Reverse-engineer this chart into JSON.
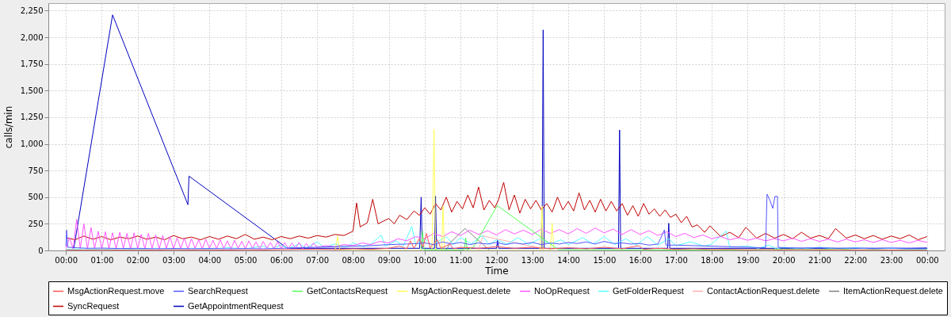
{
  "chart_data": {
    "type": "line",
    "xlabel": "Time",
    "ylabel": "calls/min",
    "xlim": [
      -0.49,
      24.49
    ],
    "ylim": [
      0,
      2320
    ],
    "xticks": [
      {
        "value": 0,
        "label": "00:00"
      },
      {
        "value": 1,
        "label": "01:00"
      },
      {
        "value": 2,
        "label": "02:00"
      },
      {
        "value": 3,
        "label": "03:00"
      },
      {
        "value": 4,
        "label": "04:00"
      },
      {
        "value": 5,
        "label": "05:00"
      },
      {
        "value": 6,
        "label": "06:00"
      },
      {
        "value": 7,
        "label": "07:00"
      },
      {
        "value": 8,
        "label": "08:00"
      },
      {
        "value": 9,
        "label": "09:00"
      },
      {
        "value": 10,
        "label": "10:00"
      },
      {
        "value": 11,
        "label": "11:00"
      },
      {
        "value": 12,
        "label": "12:00"
      },
      {
        "value": 13,
        "label": "13:00"
      },
      {
        "value": 14,
        "label": "14:00"
      },
      {
        "value": 15,
        "label": "15:00"
      },
      {
        "value": 16,
        "label": "16:00"
      },
      {
        "value": 17,
        "label": "17:00"
      },
      {
        "value": 18,
        "label": "18:00"
      },
      {
        "value": 19,
        "label": "19:00"
      },
      {
        "value": 20,
        "label": "20:00"
      },
      {
        "value": 21,
        "label": "21:00"
      },
      {
        "value": 22,
        "label": "22:00"
      },
      {
        "value": 23,
        "label": "23:00"
      },
      {
        "value": 24,
        "label": "00:00"
      }
    ],
    "yticks": [
      0,
      250,
      500,
      750,
      {
        "value": 1000,
        "label": "1,000"
      },
      {
        "value": 1250,
        "label": "1,250"
      },
      {
        "value": 1500,
        "label": "1,500"
      },
      {
        "value": 1750,
        "label": "1,750"
      },
      {
        "value": 2000,
        "label": "2,000"
      },
      {
        "value": 2250,
        "label": "2,250"
      }
    ],
    "grid": true,
    "legend": "bottom",
    "series": [
      {
        "name": "MsgActionRequest.move",
        "color": "#ff5555",
        "x": [
          0,
          0.5,
          1,
          1.5,
          2,
          2.5,
          3,
          3.5,
          4,
          4.5,
          5,
          5.5,
          6,
          6.5,
          7,
          7.5,
          8,
          8.5,
          9,
          9.3,
          9.5,
          9.6,
          9.7,
          9.85,
          9.95,
          10.05,
          10.15,
          10.35,
          10.45,
          10.7,
          10.8,
          11,
          11.5,
          12,
          12.5,
          13,
          13.5,
          14,
          14.5,
          15,
          15.5,
          15.96,
          16.1,
          16.5,
          17,
          17.5,
          18,
          18.5,
          19,
          19.5,
          20,
          20.5,
          21,
          21.5,
          22,
          22.5,
          23,
          23.5,
          24
        ],
        "values": [
          5,
          3,
          6,
          4,
          5,
          3,
          6,
          4,
          5,
          3,
          6,
          4,
          8,
          10,
          12,
          8,
          15,
          10,
          20,
          40,
          15,
          90,
          20,
          110,
          30,
          160,
          25,
          100,
          20,
          60,
          15,
          30,
          20,
          35,
          20,
          30,
          15,
          25,
          15,
          30,
          15,
          45,
          10,
          20,
          10,
          15,
          8,
          10,
          6,
          8,
          5,
          8,
          5,
          6,
          4,
          6,
          4,
          5,
          4
        ]
      },
      {
        "name": "SearchRequest",
        "color": "#5555ff",
        "x": [
          0,
          0.02,
          0.05,
          0.3,
          0.6,
          1,
          1.5,
          2,
          2.5,
          3,
          3.5,
          4,
          4.5,
          5,
          5.5,
          6,
          6.5,
          7,
          7.5,
          8,
          8.5,
          9,
          9.5,
          10,
          10.25,
          10.5,
          10.75,
          11,
          11.25,
          11.5,
          11.75,
          12,
          12.25,
          12.5,
          12.75,
          13,
          13.25,
          13.5,
          13.75,
          14,
          14.25,
          14.5,
          14.75,
          15,
          15.25,
          15.5,
          15.75,
          16,
          16.25,
          16.5,
          16.68,
          16.72,
          17,
          17.5,
          18,
          18.5,
          19,
          19.5,
          19.54,
          19.62,
          19.7,
          19.76,
          19.83,
          19.85,
          20,
          20.5,
          21,
          21.5,
          22,
          22.5,
          23,
          23.5,
          24
        ],
        "values": [
          40,
          190,
          30,
          25,
          20,
          22,
          18,
          20,
          15,
          18,
          15,
          18,
          15,
          17,
          15,
          20,
          25,
          30,
          35,
          40,
          45,
          55,
          60,
          70,
          55,
          80,
          60,
          75,
          55,
          70,
          60,
          75,
          55,
          70,
          60,
          75,
          55,
          70,
          60,
          75,
          65,
          80,
          60,
          85,
          65,
          70,
          60,
          65,
          50,
          60,
          193,
          50,
          50,
          45,
          40,
          35,
          30,
          25,
          528,
          470,
          394,
          507,
          507,
          30,
          25,
          22,
          25,
          20,
          22,
          20,
          22,
          20,
          25
        ]
      },
      {
        "name": "GetContactsRequest",
        "color": "#55ff55",
        "x": [
          9.9,
          9.94,
          9.98,
          11.1,
          11.14,
          11.18,
          11.36,
          12.02,
          13.72,
          16,
          19,
          20,
          21,
          21.5,
          22,
          24
        ],
        "values": [
          5,
          181,
          5,
          5,
          119,
          5,
          32,
          421,
          7,
          5,
          5,
          12,
          8,
          15,
          5,
          3
        ]
      },
      {
        "name": "MsgActionRequest.delete",
        "color": "#ffff55",
        "x": [
          7.5,
          7.57,
          7.64,
          10.2,
          10.26,
          10.3,
          10.47,
          10.51,
          10.55,
          13.22,
          13.27,
          13.3,
          13.5,
          13.55,
          13.6
        ],
        "values": [
          0,
          131,
          0,
          0,
          1135,
          0,
          0,
          416,
          0,
          0,
          416,
          0,
          0,
          255,
          0
        ]
      },
      {
        "name": "NoOpRequest",
        "color": "#ff55ff",
        "x": [
          0,
          0.1,
          0.2,
          0.3,
          0.4,
          0.5,
          0.6,
          0.7,
          0.8,
          0.9,
          1,
          1.1,
          1.2,
          1.3,
          1.4,
          1.5,
          1.6,
          1.7,
          1.8,
          1.9,
          2,
          2.1,
          2.2,
          2.3,
          2.4,
          2.5,
          2.6,
          2.7,
          2.8,
          2.9,
          3,
          3.1,
          3.2,
          3.3,
          3.4,
          3.5,
          3.6,
          3.7,
          3.8,
          3.9,
          4,
          4.1,
          4.2,
          4.3,
          4.4,
          4.5,
          4.6,
          4.7,
          4.8,
          4.9,
          5,
          5.1,
          5.2,
          5.3,
          5.4,
          5.5,
          5.6,
          5.7,
          5.8,
          5.9,
          6,
          6.1,
          6.2,
          6.3,
          6.4,
          6.5,
          6.6,
          6.7,
          6.8,
          6.9,
          7,
          7.25,
          7.5,
          7.75,
          8,
          8.25,
          8.5,
          8.75,
          9,
          9.25,
          9.5,
          9.75,
          10,
          10.25,
          10.5,
          10.75,
          11,
          11.25,
          11.5,
          11.75,
          12,
          12.25,
          12.5,
          12.75,
          13,
          13.25,
          13.5,
          13.75,
          14,
          14.25,
          14.5,
          14.75,
          15,
          15.25,
          15.5,
          15.75,
          16,
          16.25,
          16.5,
          16.75,
          17,
          17.25,
          17.5,
          17.75,
          18,
          18.25,
          18.5,
          18.75,
          19,
          19.25,
          19.5,
          19.75,
          20,
          20.25,
          20.5,
          20.75,
          21,
          21.25,
          21.5,
          21.75,
          22,
          22.25,
          22.5,
          22.75,
          23,
          23.25,
          23.5,
          23.75,
          24
        ],
        "values": [
          20,
          120,
          15,
          292,
          20,
          250,
          15,
          215,
          20,
          180,
          15,
          175,
          20,
          165,
          15,
          170,
          20,
          160,
          15,
          165,
          20,
          150,
          15,
          160,
          20,
          145,
          15,
          140,
          20,
          130,
          15,
          120,
          20,
          115,
          15,
          110,
          20,
          100,
          15,
          105,
          20,
          95,
          15,
          100,
          20,
          90,
          15,
          95,
          20,
          85,
          15,
          90,
          20,
          80,
          15,
          85,
          20,
          75,
          15,
          80,
          20,
          75,
          15,
          70,
          20,
          75,
          15,
          65,
          20,
          70,
          30,
          45,
          35,
          55,
          45,
          70,
          55,
          85,
          70,
          110,
          90,
          130,
          110,
          160,
          130,
          175,
          140,
          190,
          150,
          185,
          145,
          195,
          155,
          190,
          150,
          200,
          160,
          195,
          155,
          205,
          160,
          210,
          165,
          200,
          150,
          195,
          150,
          185,
          140,
          175,
          130,
          160,
          120,
          145,
          110,
          130,
          100,
          120,
          95,
          115,
          90,
          110,
          90,
          115,
          85,
          110,
          85,
          105,
          80,
          105,
          80,
          100,
          75,
          100,
          75,
          95,
          70,
          95,
          75
        ]
      },
      {
        "name": "GetFolderRequest",
        "color": "#55ffff",
        "x": [
          0,
          0.5,
          1,
          1.5,
          2,
          2.5,
          3,
          3.5,
          4,
          4.5,
          5,
          5.5,
          5.7,
          6,
          6.2,
          6.5,
          6.7,
          7,
          7.2,
          7.5,
          7.8,
          8,
          8.3,
          8.5,
          8.79,
          8.9,
          9.2,
          9.4,
          9.64,
          9.75,
          10,
          10.2,
          10.6,
          10.8,
          11,
          11.3,
          11.6,
          11.8,
          12,
          12.3,
          12.6,
          12.9,
          13.2,
          13.5,
          13.8,
          14,
          14.4,
          14.7,
          15,
          15.3,
          15.6,
          15.9,
          16.2,
          16.5,
          16.8,
          17,
          17.4,
          17.8,
          18,
          18.4,
          18.5,
          19,
          19.3,
          19.6,
          19.8,
          20,
          20.5,
          21,
          21.5,
          22,
          22.5,
          23,
          23.5,
          24
        ],
        "values": [
          10,
          15,
          10,
          15,
          10,
          20,
          12,
          20,
          12,
          25,
          15,
          40,
          15,
          50,
          20,
          60,
          25,
          80,
          30,
          60,
          30,
          70,
          35,
          60,
          144,
          40,
          90,
          40,
          225,
          50,
          110,
          50,
          130,
          55,
          120,
          60,
          140,
          55,
          100,
          60,
          120,
          55,
          110,
          60,
          100,
          55,
          120,
          60,
          130,
          55,
          110,
          50,
          130,
          50,
          110,
          45,
          80,
          40,
          60,
          181,
          30,
          40,
          20,
          50,
          15,
          30,
          15,
          30,
          12,
          25,
          12,
          20,
          10,
          12
        ]
      },
      {
        "name": "ContactActionRequest.delete",
        "color": "#ffafaf",
        "x": [
          11.5,
          11.62,
          13.24,
          13.3
        ],
        "values": [
          0,
          136,
          20,
          0
        ]
      },
      {
        "name": "ItemActionRequest.delete",
        "color": "#808080",
        "x": [
          10.6,
          10.7,
          11.12,
          11.75,
          11.8
        ],
        "values": [
          0,
          70,
          206,
          20,
          0
        ]
      },
      {
        "name": "SyncRequest",
        "color": "#c00000",
        "x": [
          0,
          0.25,
          0.5,
          0.75,
          1,
          1.25,
          1.5,
          1.75,
          2,
          2.25,
          2.5,
          2.75,
          3,
          3.25,
          3.5,
          3.75,
          4,
          4.25,
          4.5,
          4.75,
          5,
          5.25,
          5.5,
          5.75,
          6,
          6.25,
          6.5,
          6.75,
          7,
          7.25,
          7.5,
          7.75,
          8,
          8.1,
          8.2,
          8.4,
          8.55,
          8.7,
          9,
          9.15,
          9.3,
          9.5,
          9.7,
          9.85,
          10,
          10.15,
          10.3,
          10.45,
          10.6,
          10.75,
          10.9,
          11.05,
          11.2,
          11.35,
          11.5,
          11.65,
          11.8,
          11.95,
          12.05,
          12.2,
          12.35,
          12.5,
          12.65,
          12.8,
          12.95,
          13.1,
          13.25,
          13.4,
          13.55,
          13.7,
          13.85,
          14,
          14.15,
          14.3,
          14.45,
          14.6,
          14.75,
          14.9,
          15.05,
          15.2,
          15.35,
          15.5,
          15.65,
          15.8,
          15.95,
          16.1,
          16.25,
          16.4,
          16.55,
          16.7,
          16.85,
          17,
          17.15,
          17.3,
          17.45,
          17.6,
          17.8,
          17.95,
          18.25,
          18.5,
          18.75,
          18.95,
          19.25,
          19.5,
          19.75,
          20,
          20.25,
          20.5,
          20.75,
          21,
          21.25,
          21.45,
          21.75,
          22,
          22.25,
          22.5,
          22.75,
          23,
          23.25,
          23.5,
          23.75,
          24
        ],
        "values": [
          120,
          100,
          135,
          105,
          130,
          100,
          125,
          110,
          135,
          105,
          125,
          100,
          140,
          110,
          125,
          100,
          130,
          105,
          135,
          110,
          150,
          105,
          125,
          100,
          130,
          110,
          135,
          115,
          140,
          125,
          150,
          140,
          180,
          445,
          220,
          260,
          480,
          250,
          300,
          250,
          330,
          290,
          370,
          330,
          400,
          340,
          440,
          380,
          500,
          360,
          460,
          390,
          520,
          400,
          595,
          380,
          470,
          400,
          470,
          639,
          380,
          520,
          350,
          480,
          390,
          470,
          380,
          440,
          360,
          500,
          380,
          460,
          370,
          540,
          380,
          470,
          360,
          480,
          370,
          460,
          370,
          440,
          330,
          420,
          320,
          440,
          340,
          390,
          320,
          380,
          310,
          340,
          260,
          320,
          220,
          240,
          170,
          230,
          130,
          170,
          120,
          217,
          115,
          160,
          115,
          150,
          110,
          170,
          115,
          140,
          110,
          205,
          115,
          145,
          110,
          140,
          105,
          135,
          110,
          145,
          100,
          130
        ]
      },
      {
        "name": "GetAppointmentRequest",
        "color": "#0000c0",
        "x": [
          0.22,
          1.3,
          3.4,
          3.43,
          6.17,
          9.86,
          9.9,
          9.93,
          10.27,
          10.3,
          10.33,
          12,
          12.03,
          12.06,
          13.27,
          13.3,
          13.33,
          15.4,
          15.43,
          15.46,
          16.77,
          16.8,
          16.83,
          24
        ],
        "values": [
          20,
          2210,
          429,
          697,
          20,
          20,
          500,
          20,
          20,
          510,
          20,
          20,
          96,
          20,
          20,
          2069,
          20,
          20,
          1130,
          20,
          20,
          255,
          20,
          20
        ]
      }
    ]
  }
}
